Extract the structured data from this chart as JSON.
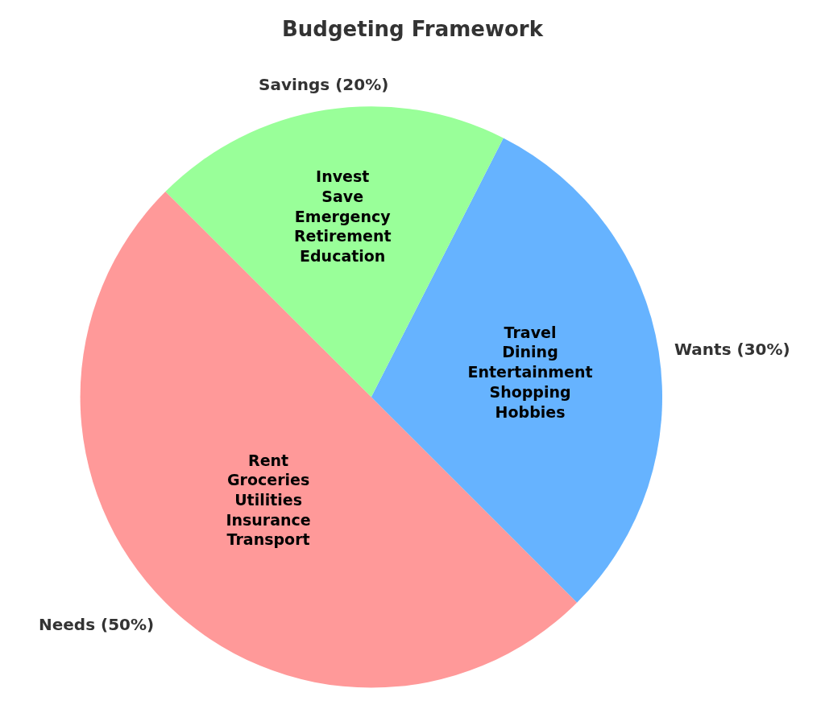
{
  "chart_data": {
    "type": "pie",
    "title": "Budgeting Framework",
    "categories": [
      "Needs (50%)",
      "Wants (30%)",
      "Savings (20%)"
    ],
    "values": [
      50,
      30,
      20
    ],
    "colors": [
      "#ff9999",
      "#66b3ff",
      "#99ff99"
    ],
    "annotations": [
      {
        "text": "Rent\nGroceries\nUtilities\nInsurance\nTransport",
        "x": "Needs (50%)"
      },
      {
        "text": "Travel\nDining\nEntertainment\nShopping\nHobbies",
        "x": "Wants (30%)"
      },
      {
        "text": "Invest\nSave\nEmergency\nRetirement\nEducation",
        "x": "Savings (20%)"
      }
    ],
    "legend": false
  }
}
